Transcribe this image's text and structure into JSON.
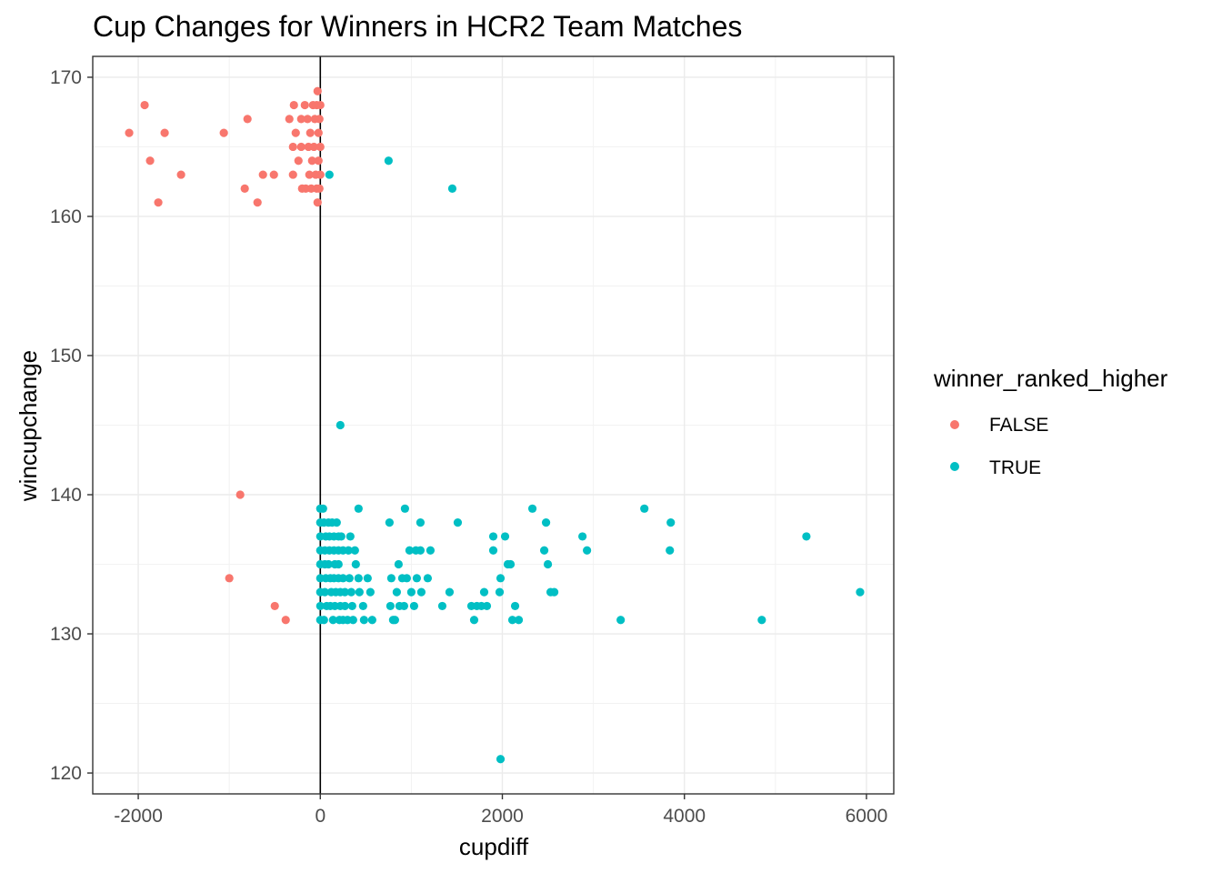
{
  "chart_data": {
    "type": "scatter",
    "title": "Cup Changes for Winners in HCR2 Team Matches",
    "xlabel": "cupdiff",
    "ylabel": "wincupchange",
    "xlim": [
      -2500,
      6300
    ],
    "ylim": [
      118.5,
      171.5
    ],
    "x_ticks": [
      -2000,
      0,
      2000,
      4000,
      6000
    ],
    "x_tick_labels": [
      "-2000",
      "0",
      "2000",
      "4000",
      "6000"
    ],
    "y_ticks": [
      120,
      130,
      140,
      150,
      160,
      170
    ],
    "y_tick_labels": [
      "120",
      "130",
      "140",
      "150",
      "160",
      "170"
    ],
    "grid": true,
    "vline_x": 0,
    "legend": {
      "title": "winner_ranked_higher",
      "position": "right"
    },
    "series": [
      {
        "name": "FALSE",
        "color": "#F8766D",
        "points": [
          [
            -2100,
            166
          ],
          [
            -1930,
            168
          ],
          [
            -1870,
            164
          ],
          [
            -1780,
            161
          ],
          [
            -1710,
            166
          ],
          [
            -1530,
            163
          ],
          [
            -1060,
            166
          ],
          [
            -880,
            140
          ],
          [
            -830,
            162
          ],
          [
            -800,
            167
          ],
          [
            -1000,
            134
          ],
          [
            -690,
            161
          ],
          [
            -630,
            163
          ],
          [
            -510,
            163
          ],
          [
            -500,
            132
          ],
          [
            -380,
            131
          ],
          [
            -340,
            167
          ],
          [
            -300,
            163
          ],
          [
            -300,
            165
          ],
          [
            -290,
            168
          ],
          [
            -270,
            166
          ],
          [
            -240,
            164
          ],
          [
            -210,
            167
          ],
          [
            -210,
            165
          ],
          [
            -200,
            162
          ],
          [
            -170,
            168
          ],
          [
            -160,
            162
          ],
          [
            -140,
            167
          ],
          [
            -130,
            165
          ],
          [
            -120,
            163
          ],
          [
            -110,
            166
          ],
          [
            -100,
            162
          ],
          [
            -90,
            164
          ],
          [
            -80,
            168
          ],
          [
            -70,
            165
          ],
          [
            -60,
            167
          ],
          [
            -50,
            163
          ],
          [
            -40,
            168
          ],
          [
            -40,
            162
          ],
          [
            -30,
            161
          ],
          [
            -30,
            169
          ],
          [
            -20,
            166
          ],
          [
            -20,
            164
          ],
          [
            -10,
            167
          ],
          [
            -10,
            162
          ],
          [
            0,
            168
          ],
          [
            0,
            165
          ],
          [
            0,
            163
          ]
        ]
      },
      {
        "name": "TRUE",
        "color": "#00BFC4",
        "points": [
          [
            100,
            163
          ],
          [
            750,
            164
          ],
          [
            1450,
            162
          ],
          [
            220,
            145
          ],
          [
            1980,
            121
          ],
          [
            0,
            139
          ],
          [
            30,
            139
          ],
          [
            0,
            138
          ],
          [
            0,
            137
          ],
          [
            0,
            136
          ],
          [
            0,
            135
          ],
          [
            0,
            134
          ],
          [
            0,
            133
          ],
          [
            0,
            132
          ],
          [
            0,
            131
          ],
          [
            40,
            138
          ],
          [
            60,
            137
          ],
          [
            50,
            136
          ],
          [
            50,
            135
          ],
          [
            60,
            134
          ],
          [
            50,
            133
          ],
          [
            70,
            132
          ],
          [
            40,
            131
          ],
          [
            90,
            138
          ],
          [
            100,
            137
          ],
          [
            100,
            136
          ],
          [
            90,
            135
          ],
          [
            110,
            134
          ],
          [
            120,
            133
          ],
          [
            110,
            132
          ],
          [
            140,
            131
          ],
          [
            130,
            138
          ],
          [
            150,
            137
          ],
          [
            150,
            136
          ],
          [
            160,
            135
          ],
          [
            150,
            134
          ],
          [
            170,
            133
          ],
          [
            160,
            132
          ],
          [
            210,
            131
          ],
          [
            180,
            138
          ],
          [
            200,
            137
          ],
          [
            200,
            136
          ],
          [
            200,
            135
          ],
          [
            200,
            134
          ],
          [
            220,
            133
          ],
          [
            220,
            132
          ],
          [
            250,
            131
          ],
          [
            230,
            137
          ],
          [
            250,
            136
          ],
          [
            250,
            134
          ],
          [
            270,
            133
          ],
          [
            270,
            132
          ],
          [
            300,
            131
          ],
          [
            310,
            136
          ],
          [
            320,
            134
          ],
          [
            340,
            133
          ],
          [
            350,
            132
          ],
          [
            330,
            137
          ],
          [
            360,
            131
          ],
          [
            380,
            136
          ],
          [
            390,
            135
          ],
          [
            420,
            139
          ],
          [
            420,
            134
          ],
          [
            430,
            133
          ],
          [
            470,
            132
          ],
          [
            480,
            131
          ],
          [
            520,
            134
          ],
          [
            550,
            133
          ],
          [
            570,
            131
          ],
          [
            760,
            138
          ],
          [
            780,
            134
          ],
          [
            770,
            132
          ],
          [
            800,
            131
          ],
          [
            820,
            131
          ],
          [
            840,
            133
          ],
          [
            860,
            135
          ],
          [
            870,
            132
          ],
          [
            900,
            134
          ],
          [
            920,
            132
          ],
          [
            930,
            139
          ],
          [
            950,
            134
          ],
          [
            980,
            136
          ],
          [
            1000,
            133
          ],
          [
            1030,
            132
          ],
          [
            1050,
            136
          ],
          [
            1060,
            134
          ],
          [
            1100,
            138
          ],
          [
            1100,
            136
          ],
          [
            1110,
            133
          ],
          [
            1180,
            134
          ],
          [
            1210,
            136
          ],
          [
            1340,
            132
          ],
          [
            1420,
            133
          ],
          [
            1510,
            138
          ],
          [
            1660,
            132
          ],
          [
            1690,
            131
          ],
          [
            1720,
            132
          ],
          [
            1770,
            132
          ],
          [
            1800,
            133
          ],
          [
            1830,
            132
          ],
          [
            1900,
            137
          ],
          [
            1900,
            136
          ],
          [
            1970,
            133
          ],
          [
            1980,
            134
          ],
          [
            2030,
            137
          ],
          [
            2060,
            135
          ],
          [
            2090,
            135
          ],
          [
            2110,
            131
          ],
          [
            2140,
            132
          ],
          [
            2180,
            131
          ],
          [
            2330,
            139
          ],
          [
            2460,
            136
          ],
          [
            2480,
            138
          ],
          [
            2500,
            135
          ],
          [
            2530,
            133
          ],
          [
            2570,
            133
          ],
          [
            2880,
            137
          ],
          [
            2930,
            136
          ],
          [
            3300,
            131
          ],
          [
            3560,
            139
          ],
          [
            3840,
            136
          ],
          [
            3850,
            138
          ],
          [
            4850,
            131
          ],
          [
            5340,
            137
          ],
          [
            5930,
            133
          ]
        ]
      }
    ]
  }
}
